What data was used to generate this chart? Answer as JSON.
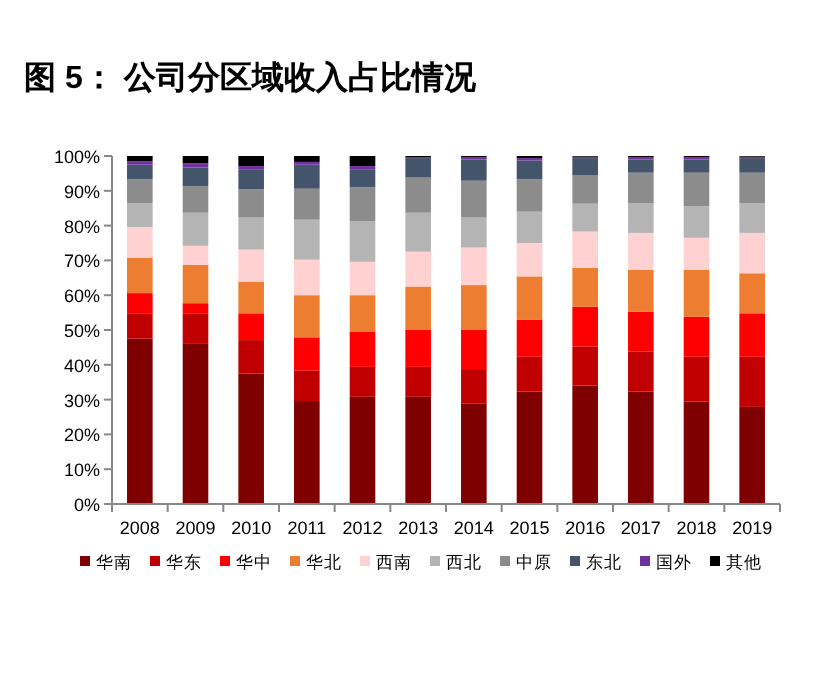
{
  "chart_data": {
    "type": "bar",
    "title": "图 5： 公司分区域收入占比情况",
    "stacked": true,
    "legend": "bottom",
    "grid": false,
    "categories": [
      "2008",
      "2009",
      "2010",
      "2011",
      "2012",
      "2013",
      "2014",
      "2015",
      "2016",
      "2017",
      "2018",
      "2019"
    ],
    "ylim": [
      0,
      100
    ],
    "yticks": [
      {
        "value": 0,
        "label": "0%"
      },
      {
        "value": 10,
        "label": "10%"
      },
      {
        "value": 20,
        "label": "20%"
      },
      {
        "value": 30,
        "label": "30%"
      },
      {
        "value": 40,
        "label": "40%"
      },
      {
        "value": 50,
        "label": "50%"
      },
      {
        "value": 60,
        "label": "60%"
      },
      {
        "value": 70,
        "label": "70%"
      },
      {
        "value": 80,
        "label": "80%"
      },
      {
        "value": 90,
        "label": "90%"
      },
      {
        "value": 100,
        "label": "100%"
      }
    ],
    "series": [
      {
        "name": "华南",
        "color": "#7f0000",
        "values": [
          47.5,
          46.2,
          37.5,
          29.6,
          30.8,
          30.8,
          28.8,
          32.3,
          34.0,
          32.3,
          29.4,
          27.9
        ]
      },
      {
        "name": "华东",
        "color": "#c00000",
        "values": [
          7.3,
          8.6,
          9.6,
          8.7,
          8.6,
          8.6,
          9.7,
          10.0,
          11.2,
          11.5,
          12.9,
          14.4
        ]
      },
      {
        "name": "华中",
        "color": "#ff0000",
        "values": [
          5.8,
          2.9,
          7.7,
          9.6,
          10.2,
          10.6,
          11.5,
          10.6,
          11.5,
          11.4,
          11.5,
          12.5
        ]
      },
      {
        "name": "华北",
        "color": "#ed7d31",
        "values": [
          10.2,
          11.0,
          9.0,
          12.1,
          10.4,
          12.5,
          12.9,
          12.5,
          11.2,
          12.1,
          13.5,
          11.5
        ]
      },
      {
        "name": "西南",
        "color": "#ffd1d1",
        "values": [
          8.8,
          5.5,
          9.3,
          10.2,
          9.6,
          10.0,
          10.8,
          9.6,
          10.4,
          10.6,
          9.2,
          11.6
        ]
      },
      {
        "name": "西北",
        "color": "#b4b4b4",
        "values": [
          6.9,
          9.5,
          9.2,
          11.5,
          11.6,
          11.2,
          8.6,
          9.0,
          8.0,
          8.6,
          9.1,
          8.6
        ]
      },
      {
        "name": "中原",
        "color": "#8c8c8c",
        "values": [
          6.8,
          7.6,
          8.1,
          8.9,
          9.8,
          10.1,
          10.6,
          9.3,
          8.1,
          8.7,
          9.6,
          8.7
        ]
      },
      {
        "name": "东北",
        "color": "#44546a",
        "values": [
          4.2,
          5.4,
          5.8,
          6.9,
          5.2,
          5.6,
          6.1,
          5.4,
          5.0,
          3.8,
          3.8,
          4.2
        ]
      },
      {
        "name": "国外",
        "color": "#7030a0",
        "values": [
          1.0,
          1.2,
          0.9,
          0.8,
          0.9,
          0.3,
          0.6,
          0.7,
          0.4,
          0.6,
          0.6,
          0.4
        ]
      },
      {
        "name": "其他",
        "color": "#000000",
        "values": [
          1.5,
          2.1,
          2.9,
          1.7,
          2.9,
          0.3,
          0.4,
          0.6,
          0.2,
          0.4,
          0.4,
          0.2
        ]
      }
    ]
  }
}
